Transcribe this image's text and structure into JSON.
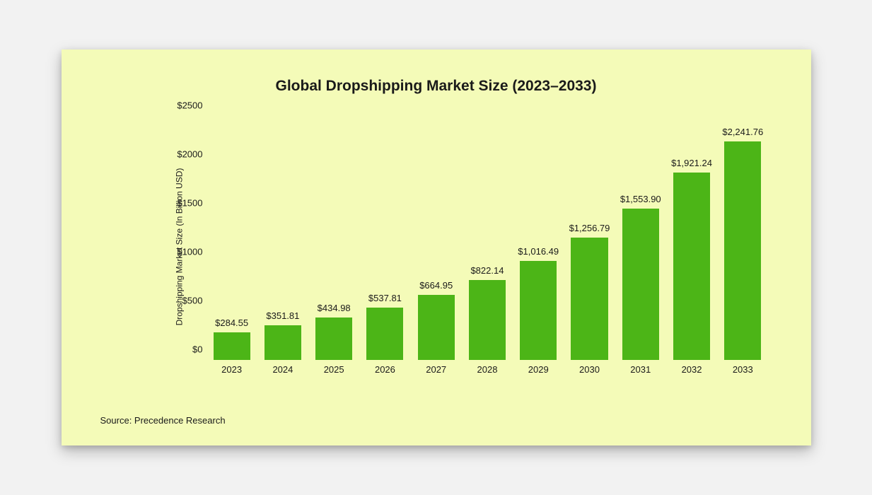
{
  "chart": {
    "type": "bar",
    "title": "Global Dropshipping Market Size (2023–2033)",
    "y_axis_label": "Dropshipping Market Size (In Billion USD)",
    "source": "Source: Precedence Research",
    "background_color": "#f4fbb8",
    "page_background": "#f2f2f2",
    "bar_color": "#4cb517",
    "text_color": "#1a1a1a",
    "title_fontsize": 21,
    "title_fontweight": 700,
    "label_fontsize": 13,
    "axis_label_fontsize": 12,
    "ylim": [
      0,
      2500
    ],
    "ytick_step": 500,
    "yticks": [
      {
        "v": 0,
        "label": "$0"
      },
      {
        "v": 500,
        "label": "$500"
      },
      {
        "v": 1000,
        "label": "$1000"
      },
      {
        "v": 1500,
        "label": "$1500"
      },
      {
        "v": 2000,
        "label": "$2000"
      },
      {
        "v": 2500,
        "label": "$2500"
      }
    ],
    "bar_width": 0.72,
    "series": [
      {
        "year": "2023",
        "value": 284.55,
        "label": "$284.55"
      },
      {
        "year": "2024",
        "value": 351.81,
        "label": "$351.81"
      },
      {
        "year": "2025",
        "value": 434.98,
        "label": "$434.98"
      },
      {
        "year": "2026",
        "value": 537.81,
        "label": "$537.81"
      },
      {
        "year": "2027",
        "value": 664.95,
        "label": "$664.95"
      },
      {
        "year": "2028",
        "value": 822.14,
        "label": "$822.14"
      },
      {
        "year": "2029",
        "value": 1016.49,
        "label": "$1,016.49"
      },
      {
        "year": "2030",
        "value": 1256.79,
        "label": "$1,256.79"
      },
      {
        "year": "2031",
        "value": 1553.9,
        "label": "$1,553.90"
      },
      {
        "year": "2032",
        "value": 1921.24,
        "label": "$1,921.24"
      },
      {
        "year": "2033",
        "value": 2241.76,
        "label": "$2,241.76"
      }
    ]
  }
}
